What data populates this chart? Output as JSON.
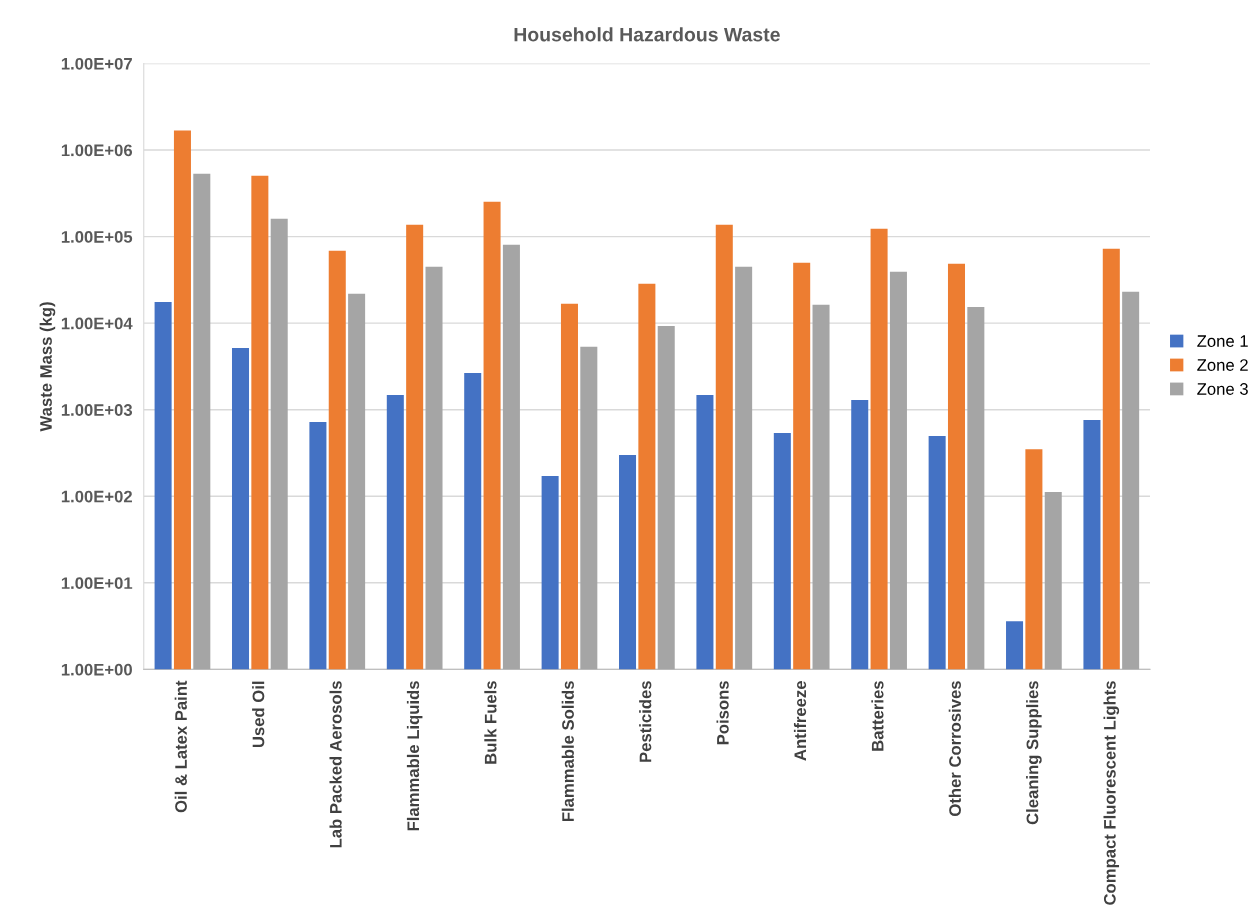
{
  "chart_data": {
    "type": "bar",
    "title": "Household Hazardous Waste",
    "ylabel": "Waste Mass (kg)",
    "categories": [
      "Oil & Latex Paint",
      "Used Oil",
      "Lab Packed Aerosols",
      "Flammable Liquids",
      "Bulk Fuels",
      "Flammable Solids",
      "Pesticides",
      "Poisons",
      "Antifreeze",
      "Batteries",
      "Other Corrosives",
      "Cleaning Supplies",
      "Compact Fluorescent Lights"
    ],
    "series": [
      {
        "name": "Zone 1",
        "color": "#4472c4",
        "values": [
          17600,
          5180,
          721,
          1480,
          2660,
          171,
          299,
          1480,
          538,
          1295,
          497,
          3.6,
          760
        ]
      },
      {
        "name": "Zone 2",
        "color": "#ed7d31",
        "values": [
          1680000,
          506000,
          68600,
          137000,
          253000,
          16700,
          28500,
          137000,
          49800,
          123000,
          48500,
          350,
          72300
        ]
      },
      {
        "name": "Zone 3",
        "color": "#a5a5a5",
        "values": [
          533000,
          161000,
          21800,
          44800,
          80500,
          5320,
          9300,
          44800,
          16300,
          39200,
          15400,
          112,
          23000
        ]
      }
    ],
    "log": "y",
    "ylim": [
      1,
      10000000
    ],
    "yticks": [
      {
        "value": 1,
        "label": "1.00E+00"
      },
      {
        "value": 10,
        "label": "1.00E+01"
      },
      {
        "value": 100,
        "label": "1.00E+02"
      },
      {
        "value": 1000,
        "label": "1.00E+03"
      },
      {
        "value": 10000,
        "label": "1.00E+04"
      },
      {
        "value": 100000,
        "label": "1.00E+05"
      },
      {
        "value": 1000000,
        "label": "1.00E+06"
      },
      {
        "value": 10000000,
        "label": "1.00E+07"
      }
    ],
    "grid": "y",
    "legend": "right"
  }
}
